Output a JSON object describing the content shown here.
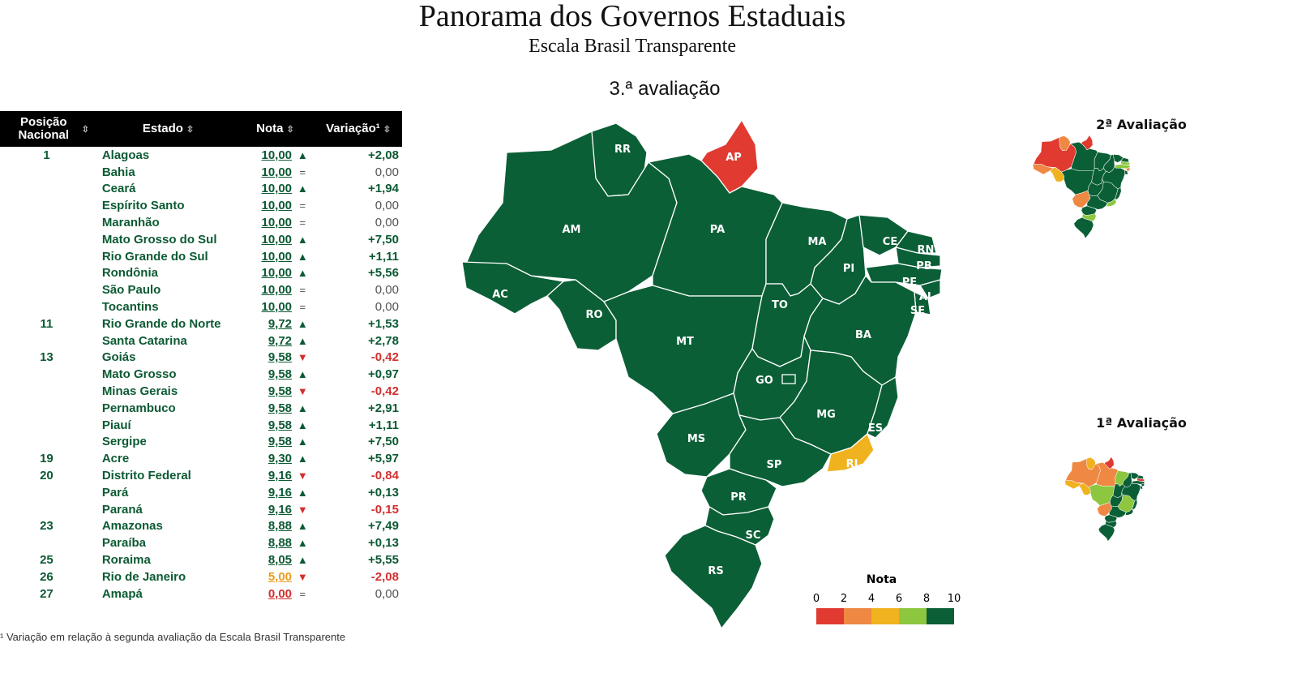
{
  "header": {
    "title": "Panorama dos Governos Estaduais",
    "subtitle": "Escala Brasil Transparente"
  },
  "map_main": {
    "title": "3.ª avaliação"
  },
  "map_second": {
    "title": "2ª Avaliação"
  },
  "map_first": {
    "title": "1ª Avaliação"
  },
  "legend": {
    "title": "Nota",
    "ticks": [
      "0",
      "2",
      "4",
      "6",
      "8",
      "10"
    ],
    "colors": [
      "#e03a31",
      "#ef8843",
      "#f0b21f",
      "#8dc63f",
      "#0b5f37"
    ]
  },
  "colors": {
    "dark_green": "#0b5f37",
    "light_green": "#8dc63f",
    "yellow": "#f0b21f",
    "orange": "#ef8843",
    "red": "#e03a31"
  },
  "table": {
    "headers": {
      "position": "Posição Nacional",
      "state": "Estado",
      "grade": "Nota",
      "variation": "Variação¹"
    },
    "rows": [
      {
        "pos": "1",
        "state": "Alagoas",
        "grade": "10,00",
        "trend": "up",
        "var": "+2,08",
        "color": "green"
      },
      {
        "pos": "",
        "state": "Bahia",
        "grade": "10,00",
        "trend": "eq",
        "var": "0,00",
        "color": "green"
      },
      {
        "pos": "",
        "state": "Ceará",
        "grade": "10,00",
        "trend": "up",
        "var": "+1,94",
        "color": "green"
      },
      {
        "pos": "",
        "state": "Espírito Santo",
        "grade": "10,00",
        "trend": "eq",
        "var": "0,00",
        "color": "green"
      },
      {
        "pos": "",
        "state": "Maranhão",
        "grade": "10,00",
        "trend": "eq",
        "var": "0,00",
        "color": "green"
      },
      {
        "pos": "",
        "state": "Mato Grosso do Sul",
        "grade": "10,00",
        "trend": "up",
        "var": "+7,50",
        "color": "green"
      },
      {
        "pos": "",
        "state": "Rio Grande do Sul",
        "grade": "10,00",
        "trend": "up",
        "var": "+1,11",
        "color": "green"
      },
      {
        "pos": "",
        "state": "Rondônia",
        "grade": "10,00",
        "trend": "up",
        "var": "+5,56",
        "color": "green"
      },
      {
        "pos": "",
        "state": "São Paulo",
        "grade": "10,00",
        "trend": "eq",
        "var": "0,00",
        "color": "green"
      },
      {
        "pos": "",
        "state": "Tocantins",
        "grade": "10,00",
        "trend": "eq",
        "var": "0,00",
        "color": "green"
      },
      {
        "pos": "11",
        "state": "Rio Grande do Norte",
        "grade": "9,72",
        "trend": "up",
        "var": "+1,53",
        "color": "green"
      },
      {
        "pos": "",
        "state": "Santa Catarina",
        "grade": "9,72",
        "trend": "up",
        "var": "+2,78",
        "color": "green"
      },
      {
        "pos": "13",
        "state": "Goiás",
        "grade": "9,58",
        "trend": "down",
        "var": "-0,42",
        "color": "green"
      },
      {
        "pos": "",
        "state": "Mato Grosso",
        "grade": "9,58",
        "trend": "up",
        "var": "+0,97",
        "color": "green"
      },
      {
        "pos": "",
        "state": "Minas Gerais",
        "grade": "9,58",
        "trend": "down",
        "var": "-0,42",
        "color": "green"
      },
      {
        "pos": "",
        "state": "Pernambuco",
        "grade": "9,58",
        "trend": "up",
        "var": "+2,91",
        "color": "green"
      },
      {
        "pos": "",
        "state": "Piauí",
        "grade": "9,58",
        "trend": "up",
        "var": "+1,11",
        "color": "green"
      },
      {
        "pos": "",
        "state": "Sergipe",
        "grade": "9,58",
        "trend": "up",
        "var": "+7,50",
        "color": "green"
      },
      {
        "pos": "19",
        "state": "Acre",
        "grade": "9,30",
        "trend": "up",
        "var": "+5,97",
        "color": "green"
      },
      {
        "pos": "20",
        "state": "Distrito Federal",
        "grade": "9,16",
        "trend": "down",
        "var": "-0,84",
        "color": "green"
      },
      {
        "pos": "",
        "state": "Pará",
        "grade": "9,16",
        "trend": "up",
        "var": "+0,13",
        "color": "green"
      },
      {
        "pos": "",
        "state": "Paraná",
        "grade": "9,16",
        "trend": "down",
        "var": "-0,15",
        "color": "green"
      },
      {
        "pos": "23",
        "state": "Amazonas",
        "grade": "8,88",
        "trend": "up",
        "var": "+7,49",
        "color": "green"
      },
      {
        "pos": "",
        "state": "Paraíba",
        "grade": "8,88",
        "trend": "up",
        "var": "+0,13",
        "color": "green"
      },
      {
        "pos": "25",
        "state": "Roraima",
        "grade": "8,05",
        "trend": "up",
        "var": "+5,55",
        "color": "green"
      },
      {
        "pos": "26",
        "state": "Rio de Janeiro",
        "grade": "5,00",
        "trend": "down",
        "var": "-2,08",
        "color": "orange"
      },
      {
        "pos": "27",
        "state": "Amapá",
        "grade": "0,00",
        "trend": "eq",
        "var": "0,00",
        "color": "red"
      }
    ],
    "sort_icon": "sort-arrows-icon",
    "footnote": "¹ Variação em relação à segunda avaliação da Escala Brasil Transparente"
  },
  "state_labels": [
    "RR",
    "AP",
    "AM",
    "PA",
    "MA",
    "CE",
    "RN",
    "PB",
    "PI",
    "PE",
    "AL",
    "SE",
    "AC",
    "RO",
    "TO",
    "BA",
    "MT",
    "GO",
    "MG",
    "ES",
    "MS",
    "SP",
    "RJ",
    "PR",
    "SC",
    "RS"
  ]
}
